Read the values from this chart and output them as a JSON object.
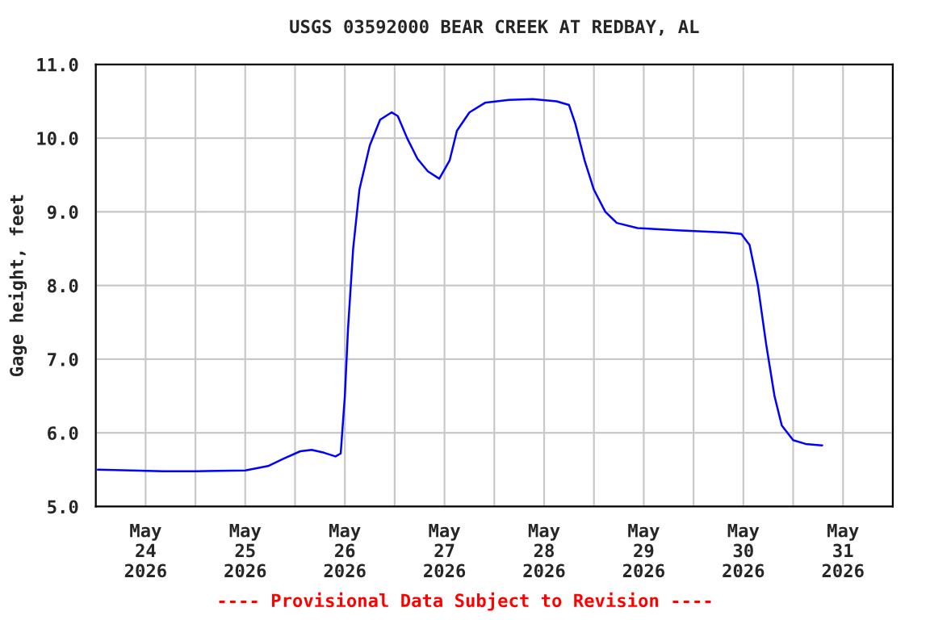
{
  "chart_data": {
    "type": "line",
    "title": "USGS 03592000 BEAR CREEK AT REDBAY, AL",
    "ylabel": "Gage height, feet",
    "annotations": [
      "---- Provisional Data Subject to Revision ----"
    ],
    "x": [
      "2026-05-23T12:30",
      "2026-05-23T20:30",
      "2026-05-24T04:15",
      "2026-05-24T12:00",
      "2026-05-25T00:00",
      "2026-05-25T05:30",
      "2026-05-25T09:15",
      "2026-05-25T13:15",
      "2026-05-25T16:00",
      "2026-05-25T19:00",
      "2026-05-25T21:45",
      "2026-05-25T23:00",
      "2026-05-26T00:00",
      "2026-05-26T00:45",
      "2026-05-26T02:00",
      "2026-05-26T03:30",
      "2026-05-26T06:00",
      "2026-05-26T08:30",
      "2026-05-26T11:15",
      "2026-05-26T12:45",
      "2026-05-26T15:00",
      "2026-05-26T17:30",
      "2026-05-26T20:00",
      "2026-05-26T22:45",
      "2026-05-27T01:15",
      "2026-05-27T03:00",
      "2026-05-27T06:00",
      "2026-05-27T09:45",
      "2026-05-27T15:30",
      "2026-05-27T21:15",
      "2026-05-28T03:00",
      "2026-05-28T06:00",
      "2026-05-28T07:30",
      "2026-05-28T09:45",
      "2026-05-28T12:00",
      "2026-05-28T14:45",
      "2026-05-28T17:30",
      "2026-05-28T22:30",
      "2026-05-29T08:00",
      "2026-05-29T19:45",
      "2026-05-29T23:30",
      "2026-05-30T01:30",
      "2026-05-30T03:30",
      "2026-05-30T05:30",
      "2026-05-30T07:30",
      "2026-05-30T09:15",
      "2026-05-30T12:00",
      "2026-05-30T15:00",
      "2026-05-30T19:00"
    ],
    "series": [
      {
        "color": "#0000ff",
        "values": [
          5.5,
          5.49,
          5.48,
          5.48,
          5.49,
          5.55,
          5.65,
          5.75,
          5.77,
          5.73,
          5.68,
          5.72,
          6.5,
          7.4,
          8.5,
          9.3,
          9.9,
          10.25,
          10.35,
          10.3,
          10.0,
          9.72,
          9.55,
          9.45,
          9.7,
          10.1,
          10.35,
          10.48,
          10.52,
          10.53,
          10.5,
          10.45,
          10.2,
          9.7,
          9.3,
          9.0,
          8.85,
          8.78,
          8.75,
          8.72,
          8.7,
          8.55,
          8.0,
          7.2,
          6.5,
          6.1,
          5.9,
          5.85,
          5.83
        ]
      }
    ],
    "xlim": [
      "2026-05-23T12:00",
      "2026-05-31T12:00"
    ],
    "xticks": [
      {
        "value": "2026-05-23T12:00",
        "label": null
      },
      {
        "value": "2026-05-24T00:00",
        "label": "May\n24\n2026"
      },
      {
        "value": "2026-05-24T12:00",
        "label": null
      },
      {
        "value": "2026-05-25T00:00",
        "label": "May\n25\n2026"
      },
      {
        "value": "2026-05-25T12:00",
        "label": null
      },
      {
        "value": "2026-05-26T00:00",
        "label": "May\n26\n2026"
      },
      {
        "value": "2026-05-26T12:00",
        "label": null
      },
      {
        "value": "2026-05-27T00:00",
        "label": "May\n27\n2026"
      },
      {
        "value": "2026-05-27T12:00",
        "label": null
      },
      {
        "value": "2026-05-28T00:00",
        "label": "May\n28\n2026"
      },
      {
        "value": "2026-05-28T12:00",
        "label": null
      },
      {
        "value": "2026-05-29T00:00",
        "label": "May\n29\n2026"
      },
      {
        "value": "2026-05-29T12:00",
        "label": null
      },
      {
        "value": "2026-05-30T00:00",
        "label": "May\n30\n2026"
      },
      {
        "value": "2026-05-30T12:00",
        "label": null
      },
      {
        "value": "2026-05-31T00:00",
        "label": "May\n31\n2026"
      },
      {
        "value": "2026-05-31T12:00",
        "label": null
      }
    ],
    "ylim": [
      5.0,
      11.0
    ],
    "yticks": [
      {
        "value": 5,
        "label": "5.0"
      },
      {
        "value": 6,
        "label": "6.0"
      },
      {
        "value": 7,
        "label": "7.0"
      },
      {
        "value": 8,
        "label": "8.0"
      },
      {
        "value": 9,
        "label": "9.0"
      },
      {
        "value": 10,
        "label": "10.0"
      },
      {
        "value": 11,
        "label": "11.0"
      }
    ],
    "grid": true,
    "marker": "none",
    "line_style": "solid",
    "legend": false
  }
}
